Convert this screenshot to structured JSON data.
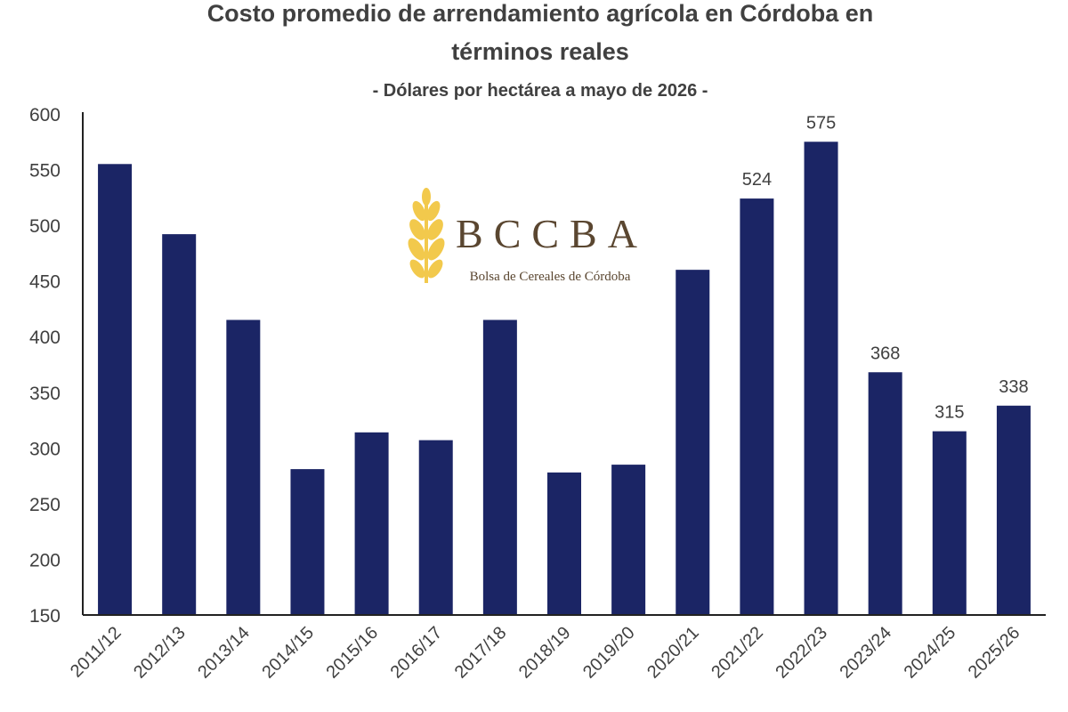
{
  "chart_data": {
    "type": "bar",
    "title_line1": "Costo promedio de arrendamiento agrícola en Córdoba en",
    "title_line2": "términos reales",
    "subtitle": "- Dólares por hectárea a mayo de 2026 -",
    "xlabel": "",
    "ylabel": "",
    "ylim": [
      150,
      600
    ],
    "yticks": [
      150,
      200,
      250,
      300,
      350,
      400,
      450,
      500,
      550,
      600
    ],
    "grid": false,
    "legend": "none",
    "categories": [
      "2011/12",
      "2012/13",
      "2013/14",
      "2014/15",
      "2015/16",
      "2016/17",
      "2017/18",
      "2018/19",
      "2019/20",
      "2020/21",
      "2021/22",
      "2022/23",
      "2023/24",
      "2024/25",
      "2025/26"
    ],
    "values": [
      555,
      492,
      415,
      281,
      314,
      307,
      415,
      278,
      285,
      460,
      524,
      575,
      368,
      315,
      338
    ],
    "data_labels": [
      null,
      null,
      null,
      null,
      null,
      null,
      null,
      null,
      null,
      null,
      "524",
      "575",
      "368",
      "315",
      "338"
    ],
    "bar_color": "#1b2565"
  },
  "logo": {
    "name": "BCCBA",
    "subtitle": "Bolsa de Cereales de Córdoba",
    "icon": "wheat-icon",
    "text_color": "#5a4630",
    "icon_color": "#f2c94c"
  }
}
